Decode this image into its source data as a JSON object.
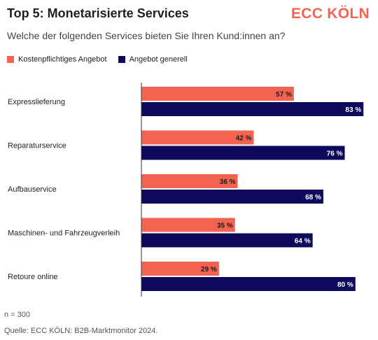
{
  "header": {
    "title": "Top 5: Monetarisierte Services",
    "brand": "ECC KÖLN",
    "subtitle": "Welche der folgenden Services bieten Sie Ihren Kund:innen an?"
  },
  "footer": {
    "n": "n = 300",
    "source": "Quelle: ECC KÖLN: B2B-Marktmonitor 2024."
  },
  "colors": {
    "paid": "#f26451",
    "general": "#0d0a5c"
  },
  "chart_data": {
    "type": "bar",
    "orientation": "horizontal",
    "categories": [
      "Expresslieferung",
      "Reparaturservice",
      "Aufbauservice",
      "Maschinen- und Fahrzeugverleih",
      "Retoure online"
    ],
    "series": [
      {
        "name": "Kostenpflichtiges Angebot",
        "values": [
          57,
          42,
          36,
          35,
          29
        ],
        "labels": [
          "57 %",
          "42 %",
          "36 %",
          "35 %",
          "29 %"
        ]
      },
      {
        "name": "Angebot generell",
        "values": [
          83,
          76,
          68,
          64,
          80
        ],
        "labels": [
          "83 %",
          "76 %",
          "68 %",
          "64 %",
          "80 %"
        ]
      }
    ],
    "xlim": [
      0,
      100
    ],
    "legend": "top-left",
    "grid": false
  }
}
